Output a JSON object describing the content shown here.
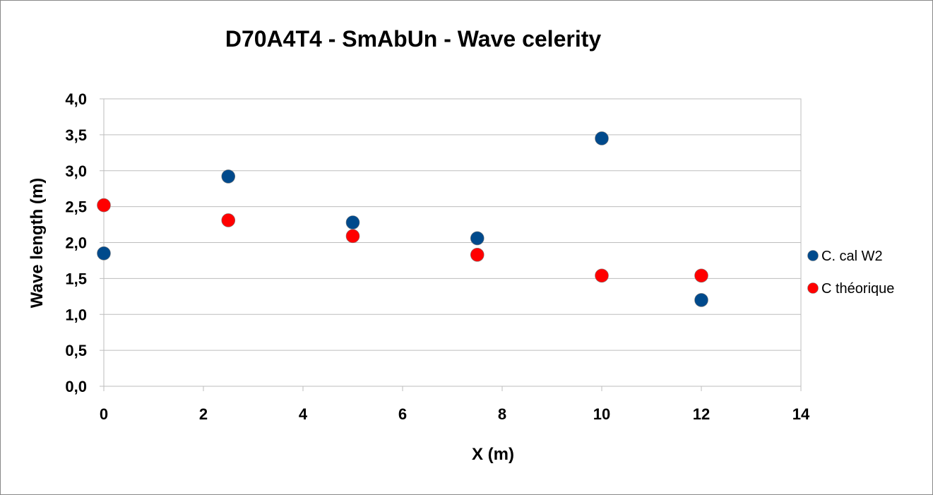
{
  "chart_data": {
    "type": "scatter",
    "title": "D70A4T4  - SmAbUn - Wave celerity",
    "xlabel": "X (m)",
    "ylabel": "Wave length (m)",
    "xlim": [
      0,
      14
    ],
    "ylim": [
      0,
      4
    ],
    "x_ticks": [
      "0",
      "2",
      "4",
      "6",
      "8",
      "10",
      "12",
      "14"
    ],
    "y_ticks": [
      "0,0",
      "0,5",
      "1,0",
      "1,5",
      "2,0",
      "2,5",
      "3,0",
      "3,5",
      "4,0"
    ],
    "grid": "horizontal",
    "legend_position": "right",
    "series": [
      {
        "name": "C. cal W2",
        "color": "#004a8c",
        "points": [
          {
            "x": 0,
            "y": 1.85
          },
          {
            "x": 2.5,
            "y": 2.92
          },
          {
            "x": 5,
            "y": 2.28
          },
          {
            "x": 7.5,
            "y": 2.06
          },
          {
            "x": 10,
            "y": 3.45
          },
          {
            "x": 12,
            "y": 1.2
          }
        ]
      },
      {
        "name": "C théorique",
        "color": "#ff0000",
        "points": [
          {
            "x": 0,
            "y": 2.52
          },
          {
            "x": 2.5,
            "y": 2.31
          },
          {
            "x": 5,
            "y": 2.09
          },
          {
            "x": 7.5,
            "y": 1.83
          },
          {
            "x": 10,
            "y": 1.54
          },
          {
            "x": 12,
            "y": 1.54
          }
        ]
      }
    ]
  }
}
